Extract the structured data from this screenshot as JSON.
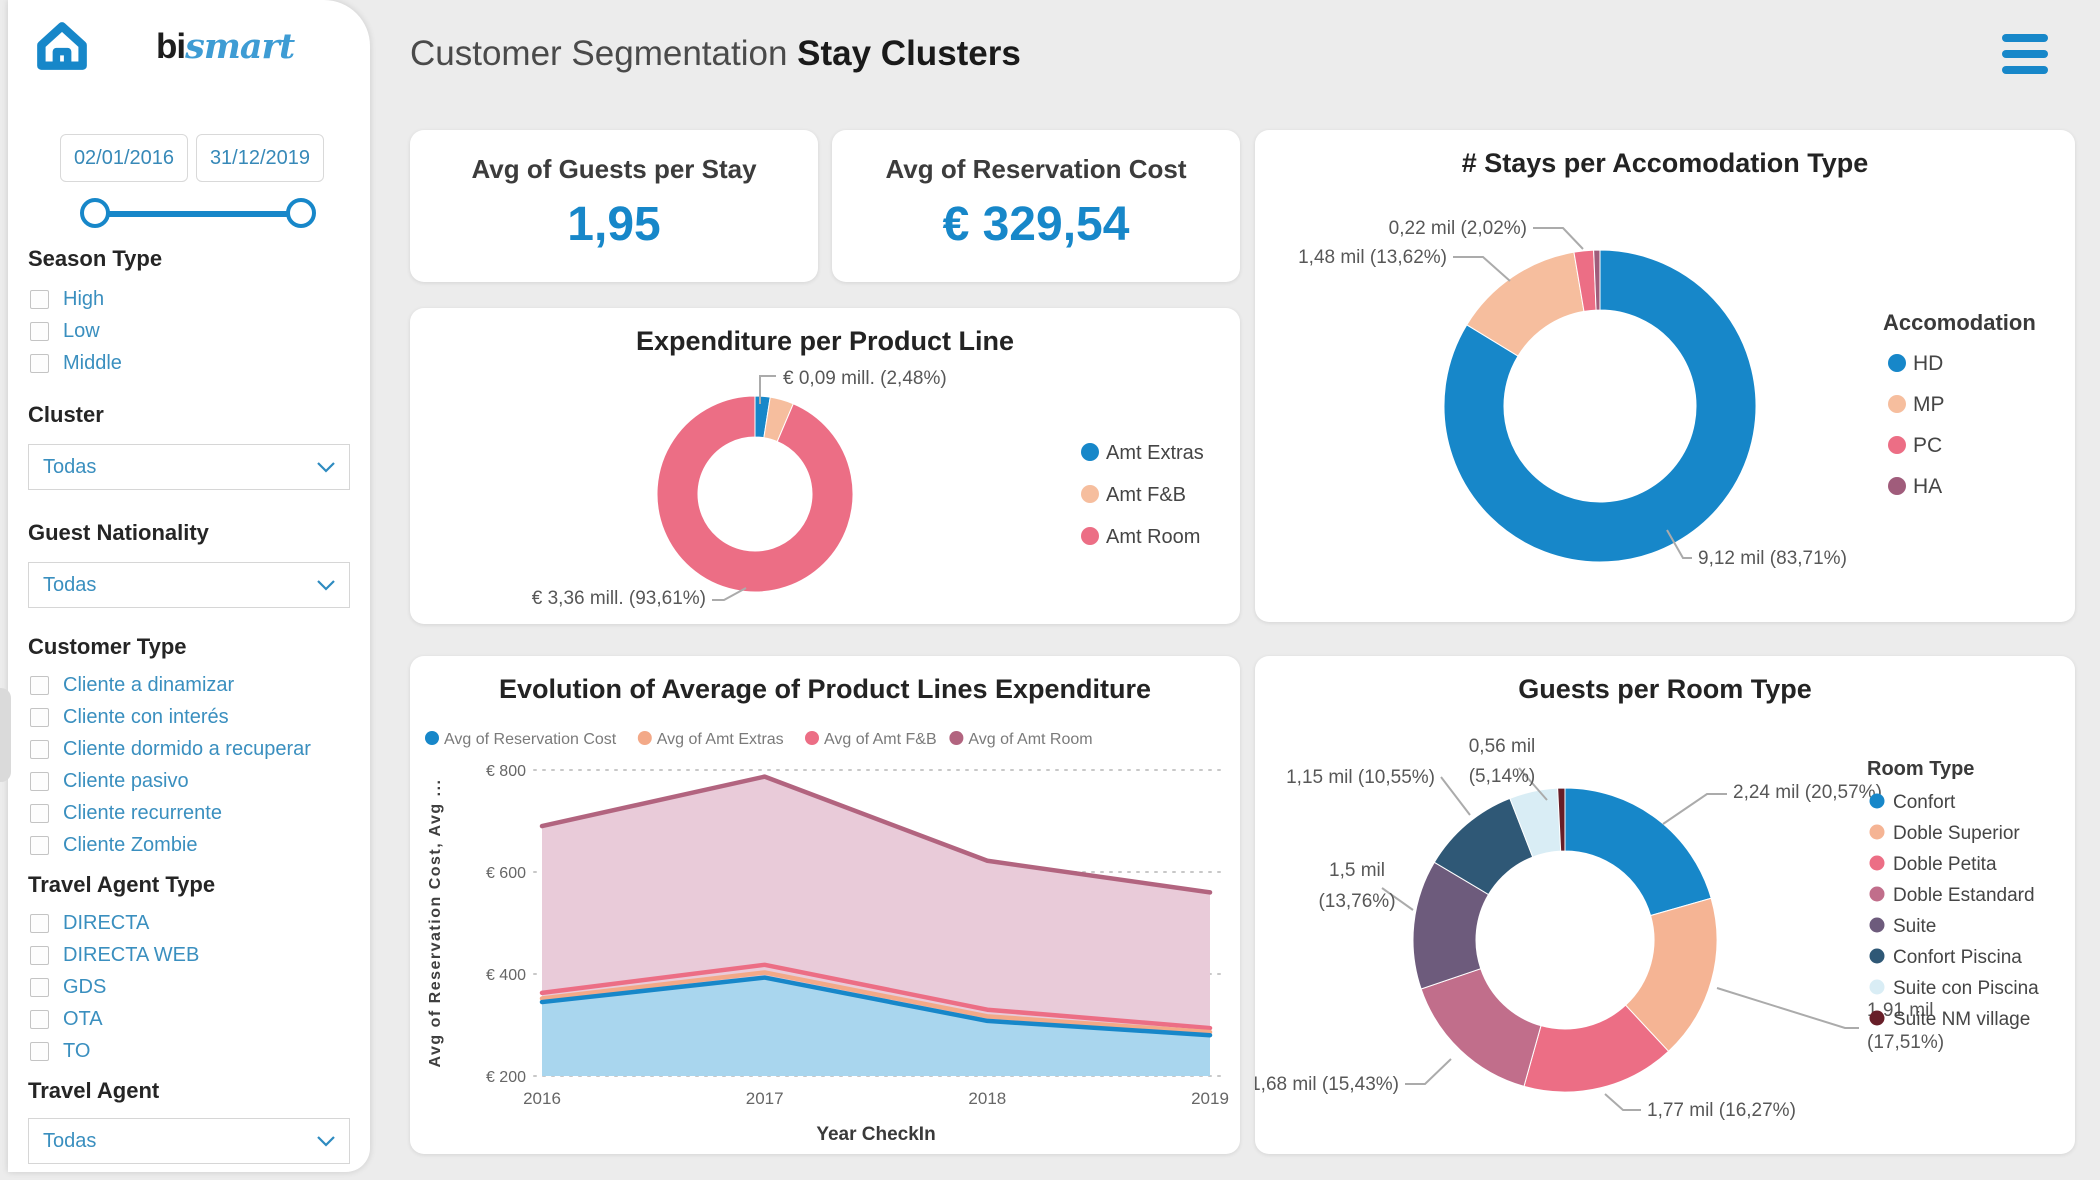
{
  "header": {
    "title_regular": "Customer Segmentation",
    "title_bold": "Stay Clusters"
  },
  "logo": {
    "part1": "bi",
    "part2": "smart"
  },
  "colors": {
    "accent_blue": "#1787C9",
    "peach": "#F6BE9E",
    "pink": "#EC6E85",
    "mauve": "#B2647F"
  },
  "sidebar": {
    "date_from": "02/01/2016",
    "date_to": "31/12/2019",
    "season_type": {
      "title": "Season Type",
      "options": [
        "High",
        "Low",
        "Middle"
      ]
    },
    "cluster": {
      "title": "Cluster",
      "value": "Todas"
    },
    "guest_nationality": {
      "title": "Guest Nationality",
      "value": "Todas"
    },
    "customer_type": {
      "title": "Customer Type",
      "options": [
        "Cliente a dinamizar",
        "Cliente con interés",
        "Cliente dormido a recuperar",
        "Cliente pasivo",
        "Cliente recurrente",
        "Cliente Zombie"
      ]
    },
    "travel_agent_type": {
      "title": "Travel Agent Type",
      "options": [
        "DIRECTA",
        "DIRECTA WEB",
        "GDS",
        "OTA",
        "TO"
      ]
    },
    "travel_agent": {
      "title": "Travel Agent",
      "value": "Todas"
    }
  },
  "kpis": [
    {
      "label": "Avg of Guests per Stay",
      "value": "1,95"
    },
    {
      "label": "Avg of Reservation Cost",
      "value": "€ 329,54"
    }
  ],
  "chart_data": [
    {
      "type": "donut",
      "title": "Expenditure per Product Line",
      "legend_position": "right",
      "slices": [
        {
          "label": "Amt Extras",
          "pct": 2.48,
          "value": "€ 0,09 mill.",
          "color": "#1787C9"
        },
        {
          "label": "Amt F&B",
          "pct": 3.91,
          "color": "#F6BE9E"
        },
        {
          "label": "Amt Room",
          "pct": 93.61,
          "value": "€ 3,36 mill.",
          "color": "#EC6E85"
        }
      ],
      "callouts": [
        {
          "text": "€ 0,09 mill. (2,48%)"
        },
        {
          "text": "€ 3,36 mill. (93,61%)"
        }
      ]
    },
    {
      "type": "donut",
      "title": "# Stays per Accomodation Type",
      "legend_title": "Accomodation",
      "legend_position": "right",
      "slices": [
        {
          "label": "HD",
          "pct": 83.71,
          "value": "9,12 mil",
          "color": "#1787C9"
        },
        {
          "label": "MP",
          "pct": 13.62,
          "value": "1,48 mil",
          "color": "#F6BE9E"
        },
        {
          "label": "PC",
          "pct": 2.02,
          "value": "0,22 mil",
          "color": "#EC6E85"
        },
        {
          "label": "HA",
          "pct": 0.65,
          "color": "#A05C7B"
        }
      ],
      "callouts": [
        {
          "text": "0,22 mil (2,02%)"
        },
        {
          "text": "1,48 mil (13,62%)"
        },
        {
          "text": "9,12 mil (83,71%)"
        }
      ]
    },
    {
      "type": "area",
      "title": "Evolution of Average of Product Lines Expenditure",
      "x": [
        2016,
        2017,
        2018,
        2019
      ],
      "xlabel": "Year CheckIn",
      "ylabel": "Avg of Reservation Cost, Avg ...",
      "ylim": [
        200,
        800
      ],
      "yticks": [
        "€ 200",
        "€ 400",
        "€ 600",
        "€ 800"
      ],
      "grid": "dotted",
      "legend_position": "top",
      "series": [
        {
          "name": "Avg of Reservation Cost",
          "values": [
            345,
            393,
            308,
            280
          ],
          "color": "#1787C9",
          "fill": "#A9D6EE"
        },
        {
          "name": "Avg of Amt Extras",
          "values": [
            352,
            403,
            317,
            286
          ],
          "color": "#F3A988"
        },
        {
          "name": "Avg of Amt F&B",
          "values": [
            363,
            418,
            330,
            294
          ],
          "color": "#EC6E85"
        },
        {
          "name": "Avg of Amt Room",
          "values": [
            690,
            787,
            622,
            560
          ],
          "color": "#B2647F",
          "fill": "#E9CBD9"
        }
      ]
    },
    {
      "type": "donut",
      "title": "Guests per Room Type",
      "legend_title": "Room Type",
      "legend_position": "right",
      "slices": [
        {
          "label": "Confort",
          "pct": 20.57,
          "value": "2,24 mil",
          "color": "#1787C9"
        },
        {
          "label": "Doble Superior",
          "pct": 17.51,
          "value": "1,91 mil",
          "color": "#F5B494"
        },
        {
          "label": "Doble Petita",
          "pct": 16.27,
          "value": "1,77 mil",
          "color": "#EC6E85"
        },
        {
          "label": "Doble Estandard",
          "pct": 15.43,
          "value": "1,68 mil",
          "color": "#C16E8B"
        },
        {
          "label": "Suite",
          "pct": 13.76,
          "value": "1,5 mil",
          "color": "#6D5B7C"
        },
        {
          "label": "Confort Piscina",
          "pct": 10.55,
          "value": "1,15 mil",
          "color": "#2F5876"
        },
        {
          "label": "Suite con Piscina",
          "pct": 5.14,
          "value": "0,56 mil",
          "color": "#D9EDF5"
        },
        {
          "label": "Suite NM village",
          "pct": 0.77,
          "color": "#671E28"
        }
      ],
      "callouts": [
        {
          "lines": [
            "0,56 mil",
            "(5,14%)"
          ]
        },
        {
          "text": "1,15 mil (10,55%)"
        },
        {
          "text": "2,24 mil (20,57%)"
        },
        {
          "lines": [
            "1,5 mil",
            "(13,76%)"
          ]
        },
        {
          "text": "1,68 mil (15,43%)"
        },
        {
          "text": "1,77 mil (16,27%)"
        },
        {
          "lines": [
            "1,91 mil",
            "(17,51%)"
          ]
        }
      ]
    }
  ]
}
